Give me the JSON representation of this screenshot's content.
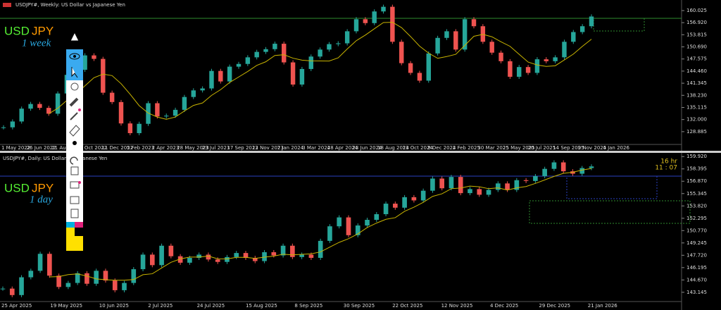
{
  "chart_data": [
    {
      "type": "candlestick",
      "title": "USDJPY#, Weekly:  US Dollar vs Japanese Yen",
      "symbol_base": "USD",
      "symbol_quote": "JPY",
      "timeframe": "1 week",
      "up_color": "#26a69a",
      "down_color": "#ef5350",
      "ma_color": "#c9b400",
      "ylim": [
        125.6,
        162.2
      ],
      "yticks": [
        160.025,
        {
          "value": 156.92,
          "label": "156.920"
        },
        153.815,
        {
          "value": 150.69,
          "label": "150.690"
        },
        147.575,
        {
          "value": 144.46,
          "label": "144.460"
        },
        141.345,
        {
          "value": 138.23,
          "label": "138.230"
        },
        135.115,
        {
          "value": 132,
          "label": "132.000"
        },
        128.885
      ],
      "x_labels": [
        "1 May 2022",
        "26 Jun 2022",
        "21 Aug 2022",
        "16 Oct 2022",
        "11 Dec 2022",
        "5 Feb 2023",
        "2 Apr 2023",
        "28 May 2023",
        "23 Jul 2023",
        "17 Sep 2023",
        "12 Nov 2023",
        "7 Jan 2024",
        "3 Mar 2024",
        "28 Apr 2024",
        "23 Jun 2024",
        "18 Aug 2024",
        "13 Oct 2024",
        "8 Dec 2024",
        "2 Feb 2025",
        "30 Mar 2025",
        "25 May 2025",
        "20 Jul 2025",
        "14 Sep 2025",
        "9 Nov 2025",
        "4 Jan 2026"
      ],
      "values": [
        130.0,
        131.5,
        134.8,
        136.0,
        135.0,
        133.5,
        138.7,
        143.5,
        144.8,
        148.5,
        147.6,
        138.9,
        136.5,
        131.0,
        128.5,
        130.9,
        136.2,
        132.8,
        133.0,
        134.5,
        137.8,
        139.5,
        140.0,
        144.5,
        141.8,
        145.6,
        146.3,
        148.0,
        149.4,
        150.1,
        151.5,
        146.7,
        141.0,
        145.0,
        148.2,
        150.0,
        151.4,
        151.6,
        154.7,
        157.8,
        156.8,
        159.8,
        161.0,
        152.0,
        146.5,
        144.0,
        142.0,
        149.0,
        153.0,
        154.7,
        150.0,
        157.8,
        156.0,
        152.0,
        149.2,
        147.0,
        143.0,
        145.5,
        144.0,
        147.5,
        147.0,
        148.0,
        152.0,
        154.5,
        156.0,
        158.5
      ]
    },
    {
      "type": "candlestick",
      "title": "USDJPY#, Daily:  US Dollar vs Japanese Yen",
      "symbol_base": "USD",
      "symbol_quote": "JPY",
      "timeframe": "1 day",
      "countdown": [
        "16 hr",
        "11 : 07"
      ],
      "up_color": "#26a69a",
      "down_color": "#ef5350",
      "ma_color": "#c9b400",
      "ylim": [
        142.0,
        160.2
      ],
      "yticks": [
        {
          "value": 159.92,
          "label": "159.920"
        },
        158.395,
        {
          "value": 156.87,
          "label": "156.870"
        },
        155.345,
        {
          "value": 153.82,
          "label": "153.820"
        },
        152.295,
        {
          "value": 150.77,
          "label": "150.770"
        },
        149.245,
        {
          "value": 147.72,
          "label": "147.720"
        },
        146.195,
        {
          "value": 144.67,
          "label": "144.670"
        },
        143.145
      ],
      "x_labels": [
        "25 Apr 2025",
        "19 May 2025",
        "10 Jun 2025",
        "2 Jul 2025",
        "24 Jul 2025",
        "15 Aug 2025",
        "8 Sep 2025",
        "30 Sep 2025",
        "22 Oct 2025",
        "12 Nov 2025",
        "4 Dec 2025",
        "29 Dec 2025",
        "21 Jan 2026"
      ],
      "values": [
        143.6,
        142.8,
        145.0,
        145.8,
        147.9,
        145.2,
        143.8,
        144.3,
        145.5,
        144.2,
        145.8,
        144.6,
        143.4,
        144.3,
        146.0,
        147.8,
        146.5,
        148.9,
        147.6,
        146.8,
        147.4,
        147.8,
        147.2,
        146.9,
        147.5,
        148.0,
        147.4,
        147.0,
        148.1,
        147.7,
        148.9,
        147.5,
        147.8,
        147.4,
        149.5,
        151.3,
        152.4,
        150.2,
        151.4,
        152.1,
        152.8,
        154.1,
        153.6,
        154.9,
        154.5,
        155.7,
        157.2,
        156.0,
        157.4,
        155.4,
        155.9,
        155.2,
        155.8,
        156.6,
        155.8,
        157.0,
        156.9,
        157.5,
        158.4,
        159.2,
        158.1,
        157.8,
        158.5,
        158.7
      ]
    }
  ]
}
